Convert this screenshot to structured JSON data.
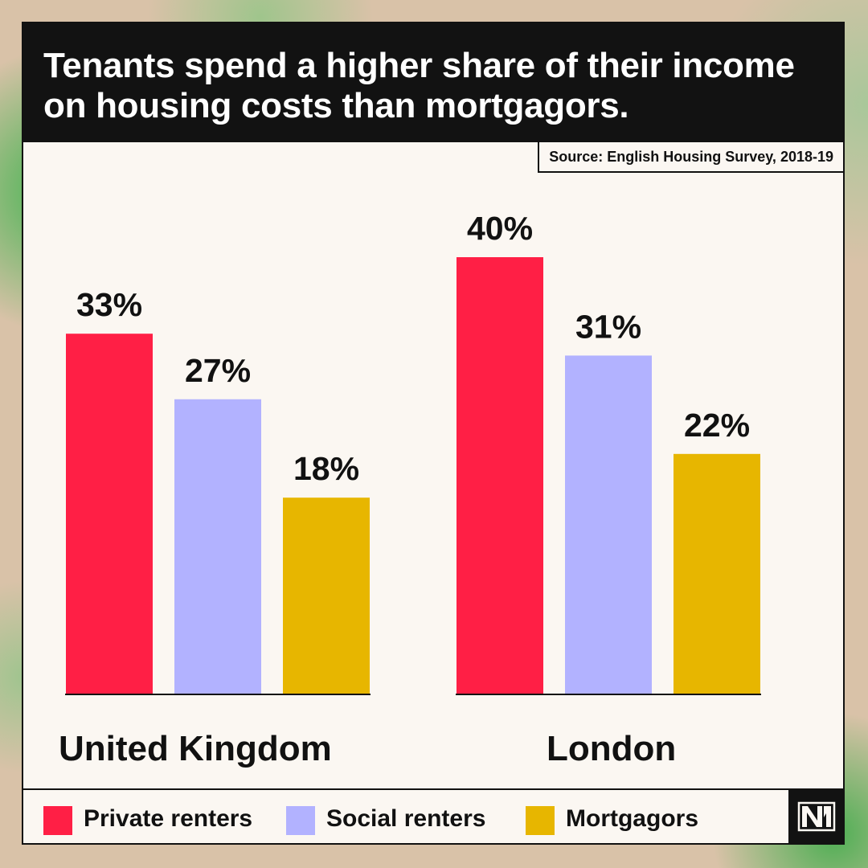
{
  "header": {
    "title": "Tenants spend a higher share of their income on housing costs than mortgagors.",
    "source": "Source: English Housing Survey, 2018-19"
  },
  "chart_data": {
    "type": "bar",
    "title": "Tenants spend a higher share of their income on housing costs than mortgagors.",
    "categories": [
      "United Kingdom",
      "London"
    ],
    "series": [
      {
        "name": "Private renters",
        "color": "#ff1f45",
        "values": [
          33,
          40
        ],
        "labels": [
          "33%",
          "40%"
        ]
      },
      {
        "name": "Social renters",
        "color": "#b2b2ff",
        "values": [
          27,
          31
        ],
        "labels": [
          "27%",
          "31%"
        ]
      },
      {
        "name": "Mortgagors",
        "color": "#e7b600",
        "values": [
          18,
          22
        ],
        "labels": [
          "18%",
          "22%"
        ]
      }
    ],
    "ylim": [
      0,
      40
    ],
    "grid": false,
    "legend_position": "bottom",
    "xlabel": "",
    "ylabel": ""
  },
  "legend": {
    "items": [
      {
        "label": "Private renters",
        "color": "#ff1f45"
      },
      {
        "label": "Social renters",
        "color": "#b2b2ff"
      },
      {
        "label": "Mortgagors",
        "color": "#e7b600"
      }
    ]
  },
  "logo": {
    "icon": "nm-logo-icon"
  }
}
